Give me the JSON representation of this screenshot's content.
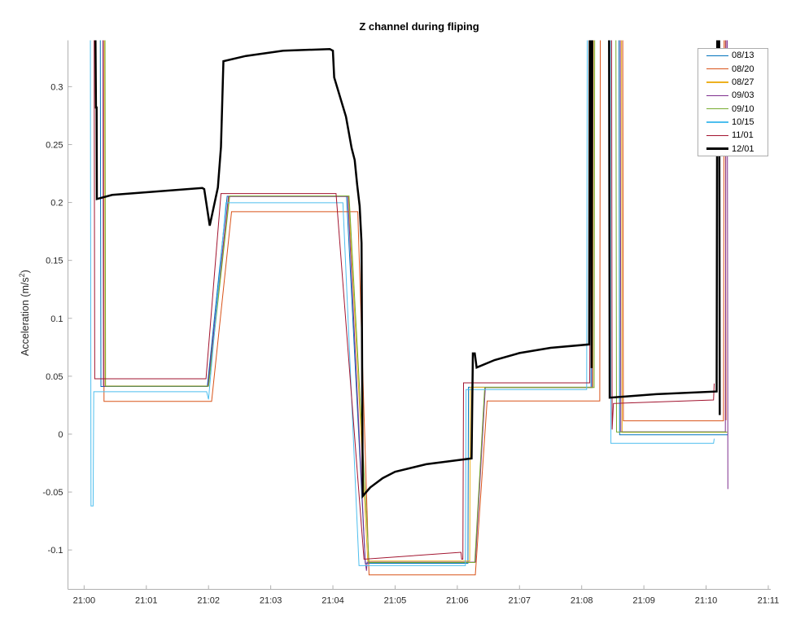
{
  "ylabel": {
    "base": "Acceleration (m/s",
    "sup": "2",
    "close": ")"
  },
  "chart_data": {
    "type": "line",
    "title": "Z channel during fliping",
    "xlabel": "",
    "ylabel": "Acceleration (m/s²)",
    "grid": false,
    "legend_position": "northeast",
    "xlim_minutes": [
      -0.26,
      11.04
    ],
    "ylim": [
      -0.134,
      0.34
    ],
    "x_ticks": [
      {
        "t": 0,
        "label": "21:00"
      },
      {
        "t": 1,
        "label": "21:01"
      },
      {
        "t": 2,
        "label": "21:02"
      },
      {
        "t": 3,
        "label": "21:03"
      },
      {
        "t": 4,
        "label": "21:04"
      },
      {
        "t": 5,
        "label": "21:05"
      },
      {
        "t": 6,
        "label": "21:06"
      },
      {
        "t": 7,
        "label": "21:07"
      },
      {
        "t": 8,
        "label": "21:08"
      },
      {
        "t": 9,
        "label": "21:09"
      },
      {
        "t": 10,
        "label": "21:10"
      },
      {
        "t": 11,
        "label": "21:11"
      }
    ],
    "y_ticks": [
      {
        "v": -0.1,
        "label": "-0.1"
      },
      {
        "v": -0.05,
        "label": "-0.05"
      },
      {
        "v": 0,
        "label": "0"
      },
      {
        "v": 0.05,
        "label": "0.05"
      },
      {
        "v": 0.1,
        "label": "0.1"
      },
      {
        "v": 0.15,
        "label": "0.15"
      },
      {
        "v": 0.2,
        "label": "0.2"
      },
      {
        "v": 0.25,
        "label": "0.25"
      },
      {
        "v": 0.3,
        "label": "0.3"
      }
    ],
    "series": [
      {
        "name": "08/13",
        "color": "#0072BD",
        "width": 1,
        "points": [
          [
            0.26,
            0.36
          ],
          [
            0.27,
            0.0411
          ],
          [
            1.98,
            0.0411
          ],
          [
            2.3,
            0.2054
          ],
          [
            4.22,
            0.2054
          ],
          [
            4.52,
            -0.1115
          ],
          [
            6.17,
            -0.1115
          ],
          [
            6.18,
            0.0405
          ],
          [
            8.15,
            0.0405
          ],
          [
            8.16,
            0.36
          ],
          [
            8.6,
            0.36
          ],
          [
            8.61,
            -0.0005
          ],
          [
            10.35,
            -0.0005
          ]
        ]
      },
      {
        "name": "08/20",
        "color": "#D95319",
        "width": 1,
        "points": [
          [
            0.31,
            0.36
          ],
          [
            0.32,
            0.0283
          ],
          [
            2.05,
            0.0283
          ],
          [
            2.37,
            0.192
          ],
          [
            4.4,
            0.192
          ],
          [
            4.58,
            -0.1215
          ],
          [
            6.29,
            -0.1215
          ],
          [
            6.48,
            0.0287
          ],
          [
            8.29,
            0.0287
          ],
          [
            8.3,
            0.36
          ],
          [
            8.66,
            0.36
          ],
          [
            8.67,
            0.0115
          ],
          [
            10.28,
            0.0115
          ],
          [
            10.29,
            0.36
          ],
          [
            10.31,
            0.36
          ],
          [
            10.32,
            0.012
          ]
        ]
      },
      {
        "name": "08/27",
        "color": "#EDB120",
        "width": 1,
        "points": [
          [
            0.33,
            0.36
          ],
          [
            0.34,
            0.0415
          ],
          [
            2.0,
            0.0415
          ],
          [
            2.33,
            0.2054
          ],
          [
            4.25,
            0.2054
          ],
          [
            4.56,
            -0.1095
          ],
          [
            6.2,
            -0.1095
          ],
          [
            6.21,
            0.0405
          ],
          [
            8.18,
            0.0405
          ],
          [
            8.19,
            0.36
          ],
          [
            8.64,
            0.36
          ],
          [
            8.65,
            0.0015
          ],
          [
            10.33,
            0.0015
          ]
        ]
      },
      {
        "name": "09/03",
        "color": "#7E2F8E",
        "width": 1,
        "points": [
          [
            0.3,
            0.36
          ],
          [
            0.31,
            0.0413
          ],
          [
            1.99,
            0.0413
          ],
          [
            2.32,
            0.2052
          ],
          [
            4.24,
            0.2052
          ],
          [
            4.52,
            -0.1105
          ],
          [
            4.54,
            -0.118
          ],
          [
            4.55,
            -0.1105
          ],
          [
            6.29,
            -0.1105
          ],
          [
            6.45,
            0.0402
          ],
          [
            8.17,
            0.0402
          ],
          [
            8.18,
            0.36
          ],
          [
            8.62,
            0.36
          ],
          [
            8.63,
            0.002
          ],
          [
            10.31,
            0.002
          ],
          [
            10.32,
            0.36
          ],
          [
            10.34,
            0.36
          ],
          [
            10.35,
            -0.0474
          ]
        ]
      },
      {
        "name": "09/10",
        "color": "#77AC30",
        "width": 1,
        "points": [
          [
            0.335,
            0.36
          ],
          [
            0.345,
            0.0414
          ],
          [
            2.0,
            0.0414
          ],
          [
            2.34,
            0.2056
          ],
          [
            4.26,
            0.2056
          ],
          [
            4.58,
            -0.1108
          ],
          [
            6.28,
            -0.1108
          ],
          [
            6.44,
            0.0403
          ],
          [
            8.2,
            0.0403
          ],
          [
            8.21,
            0.36
          ],
          [
            8.55,
            0.36
          ],
          [
            8.56,
            0.0018
          ],
          [
            10.34,
            0.0018
          ]
        ]
      },
      {
        "name": "10/15",
        "color": "#4DBEEE",
        "width": 1,
        "points": [
          [
            0.1,
            0.36
          ],
          [
            0.11,
            -0.062
          ],
          [
            0.145,
            -0.062
          ],
          [
            0.155,
            0.0366
          ],
          [
            1.97,
            0.0366
          ],
          [
            2.0,
            0.03
          ],
          [
            2.28,
            0.1998
          ],
          [
            4.16,
            0.1998
          ],
          [
            4.42,
            -0.1135
          ],
          [
            6.13,
            -0.1135
          ],
          [
            6.14,
            0.0385
          ],
          [
            8.08,
            0.0385
          ],
          [
            8.09,
            0.36
          ],
          [
            8.46,
            0.36
          ],
          [
            8.47,
            -0.008
          ],
          [
            10.12,
            -0.008
          ],
          [
            10.13,
            -0.004
          ]
        ]
      },
      {
        "name": "11/01",
        "color": "#A2142F",
        "width": 1,
        "points": [
          [
            0.16,
            0.36
          ],
          [
            0.17,
            0.0478
          ],
          [
            1.96,
            0.0478
          ],
          [
            2.2,
            0.2077
          ],
          [
            4.05,
            0.2077
          ],
          [
            4.5,
            -0.108
          ],
          [
            6.06,
            -0.102
          ],
          [
            6.07,
            -0.108
          ],
          [
            6.09,
            -0.108
          ],
          [
            6.1,
            0.0443
          ],
          [
            8.13,
            0.0443
          ],
          [
            8.14,
            0.36
          ],
          [
            8.48,
            0.36
          ],
          [
            8.49,
            0.004
          ],
          [
            8.51,
            0.0265
          ],
          [
            10.12,
            0.0295
          ],
          [
            10.13,
            0.0437
          ]
        ]
      },
      {
        "name": "12/01",
        "color": "#000000",
        "width": 2.5,
        "points": [
          [
            0.18,
            0.36
          ],
          [
            0.19,
            0.282
          ],
          [
            0.2,
            0.282
          ],
          [
            0.205,
            0.203
          ],
          [
            0.45,
            0.2065
          ],
          [
            1.9,
            0.2125
          ],
          [
            1.93,
            0.2115
          ],
          [
            2.02,
            0.18
          ],
          [
            2.15,
            0.213
          ],
          [
            2.2,
            0.248
          ],
          [
            2.24,
            0.322
          ],
          [
            2.6,
            0.3265
          ],
          [
            3.2,
            0.331
          ],
          [
            3.95,
            0.3325
          ],
          [
            4.0,
            0.331
          ],
          [
            4.02,
            0.308
          ],
          [
            4.21,
            0.274
          ],
          [
            4.3,
            0.247
          ],
          [
            4.35,
            0.2366
          ],
          [
            4.39,
            0.2155
          ],
          [
            4.43,
            0.1968
          ],
          [
            4.46,
            0.165
          ],
          [
            4.48,
            -0.0535
          ],
          [
            4.6,
            -0.046
          ],
          [
            4.8,
            -0.038
          ],
          [
            5.0,
            -0.0325
          ],
          [
            5.5,
            -0.026
          ],
          [
            6.23,
            -0.021
          ],
          [
            6.25,
            0.0697
          ],
          [
            6.28,
            0.0697
          ],
          [
            6.31,
            0.0575
          ],
          [
            6.6,
            0.064
          ],
          [
            7.0,
            0.07
          ],
          [
            7.5,
            0.0745
          ],
          [
            8.12,
            0.0775
          ],
          [
            8.13,
            0.36
          ],
          [
            8.15,
            0.36
          ],
          [
            8.16,
            0.057
          ],
          [
            8.17,
            0.36
          ],
          [
            8.44,
            0.36
          ],
          [
            8.45,
            0.0315
          ],
          [
            9.2,
            0.0345
          ],
          [
            10.17,
            0.0368
          ],
          [
            10.18,
            0.36
          ],
          [
            10.21,
            0.36
          ],
          [
            10.22,
            0.0165
          ]
        ]
      }
    ]
  }
}
